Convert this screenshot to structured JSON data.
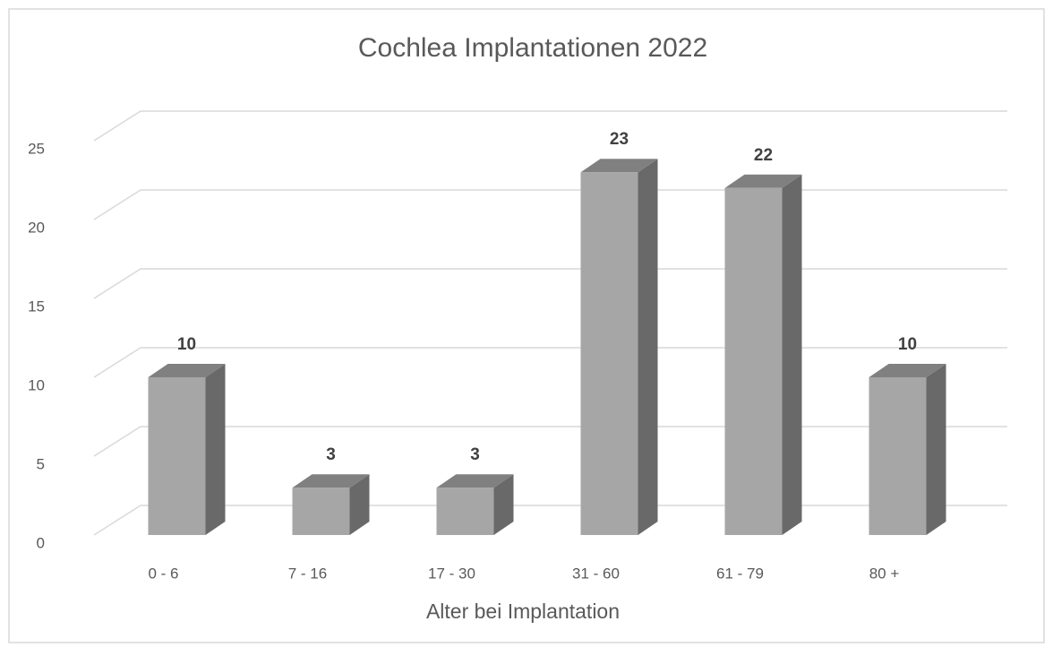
{
  "chart_data": {
    "type": "bar3d",
    "title": "Cochlea Implantationen 2022",
    "x_label": "Alter bei Implantation",
    "categories": [
      "0 - 6",
      "7 - 16",
      "17 - 30",
      "31 - 60",
      "61 - 79",
      "80 +"
    ],
    "values": [
      10,
      3,
      3,
      23,
      22,
      10
    ],
    "color": "#a6a6a6",
    "ylim": [
      0,
      25
    ],
    "yticks": [
      0,
      5,
      10,
      15,
      20,
      25
    ],
    "grid": true
  }
}
